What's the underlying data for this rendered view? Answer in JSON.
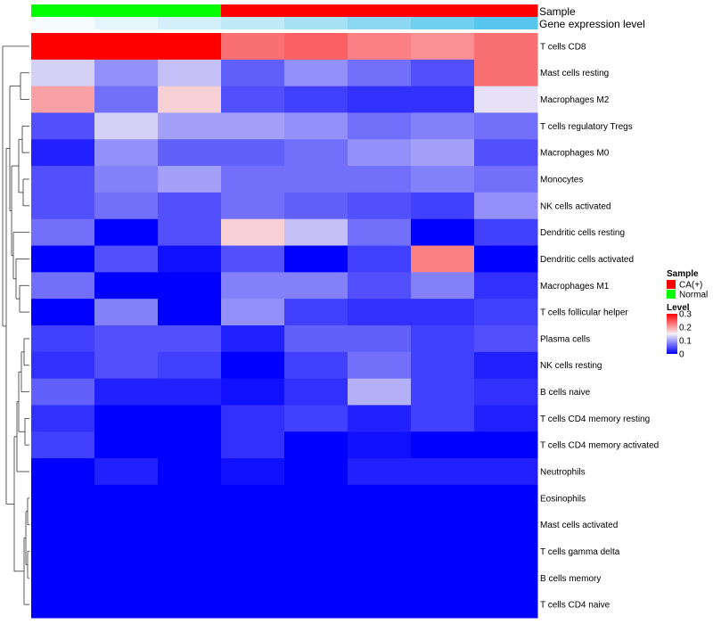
{
  "chart_data": {
    "type": "heatmap",
    "annotation_rows": {
      "sample_label": "Sample",
      "expression_label": "Gene expression level",
      "sample_groups": [
        "Normal",
        "Normal",
        "Normal",
        "CA(+)",
        "CA(+)",
        "CA(+)",
        "CA(+)",
        "CA(+)"
      ],
      "expression_values": [
        0.05,
        0.15,
        0.25,
        0.35,
        0.5,
        0.65,
        0.8,
        0.95
      ]
    },
    "rows": [
      "T cells CD8",
      "Mast cells resting",
      "Macrophages M2",
      "T cells regulatory  Tregs",
      "Macrophages M0",
      "Monocytes",
      "NK cells activated",
      "Dendritic cells resting",
      "Dendritic cells activated",
      "Macrophages M1",
      "T cells follicular helper",
      "Plasma cells",
      "NK cells resting",
      "B cells naive",
      "T cells CD4 memory resting",
      "T cells CD4 memory activated",
      "Neutrophils",
      "Eosinophils",
      "Mast cells activated",
      "T cells gamma delta",
      "B cells memory",
      "T cells CD4 naive"
    ],
    "values": [
      [
        0.3,
        0.3,
        0.3,
        0.23,
        0.24,
        0.22,
        0.21,
        0.23
      ],
      [
        0.13,
        0.09,
        0.12,
        0.06,
        0.09,
        0.07,
        0.05,
        0.23
      ],
      [
        0.2,
        0.07,
        0.17,
        0.05,
        0.04,
        0.03,
        0.03,
        0.14
      ],
      [
        0.05,
        0.13,
        0.1,
        0.1,
        0.09,
        0.07,
        0.08,
        0.07
      ],
      [
        0.02,
        0.09,
        0.06,
        0.06,
        0.07,
        0.09,
        0.1,
        0.05
      ],
      [
        0.05,
        0.08,
        0.1,
        0.07,
        0.07,
        0.07,
        0.08,
        0.07
      ],
      [
        0.05,
        0.07,
        0.05,
        0.07,
        0.06,
        0.05,
        0.04,
        0.09
      ],
      [
        0.07,
        0.0,
        0.05,
        0.17,
        0.12,
        0.07,
        0.0,
        0.04
      ],
      [
        0.0,
        0.05,
        0.01,
        0.05,
        0.0,
        0.04,
        0.22,
        0.0
      ],
      [
        0.07,
        0.0,
        0.0,
        0.08,
        0.08,
        0.05,
        0.08,
        0.03
      ],
      [
        0.0,
        0.08,
        0.0,
        0.09,
        0.04,
        0.03,
        0.03,
        0.04
      ],
      [
        0.04,
        0.05,
        0.05,
        0.02,
        0.06,
        0.06,
        0.04,
        0.05
      ],
      [
        0.03,
        0.05,
        0.04,
        0.0,
        0.04,
        0.07,
        0.04,
        0.02
      ],
      [
        0.06,
        0.02,
        0.02,
        0.01,
        0.03,
        0.11,
        0.04,
        0.03
      ],
      [
        0.03,
        0.0,
        0.0,
        0.03,
        0.04,
        0.02,
        0.04,
        0.02
      ],
      [
        0.04,
        0.0,
        0.0,
        0.03,
        0.0,
        0.01,
        0.0,
        0.0
      ],
      [
        0.0,
        0.02,
        0.0,
        0.01,
        0.0,
        0.02,
        0.02,
        0.02
      ],
      [
        0,
        0,
        0,
        0,
        0,
        0,
        0,
        0
      ],
      [
        0,
        0,
        0,
        0,
        0,
        0,
        0,
        0
      ],
      [
        0,
        0,
        0,
        0,
        0,
        0,
        0,
        0
      ],
      [
        0,
        0,
        0,
        0,
        0,
        0,
        0,
        0
      ],
      [
        0,
        0,
        0,
        0,
        0,
        0,
        0,
        0
      ]
    ],
    "scale": {
      "min": 0,
      "max": 0.3,
      "colors": [
        "#0000FF",
        "#F5F0F5",
        "#FF0000"
      ]
    },
    "legend": {
      "sample_title": "Sample",
      "sample_items": [
        {
          "label": "CA(+)",
          "color": "#FF0000"
        },
        {
          "label": "Normal",
          "color": "#00FF00"
        }
      ],
      "level_title": "Level",
      "level_ticks": [
        "0.3",
        "0.2",
        "0.1",
        "0"
      ],
      "level_tick_values": [
        0.3,
        0.2,
        0.1,
        0
      ]
    },
    "legend_position": "right"
  }
}
